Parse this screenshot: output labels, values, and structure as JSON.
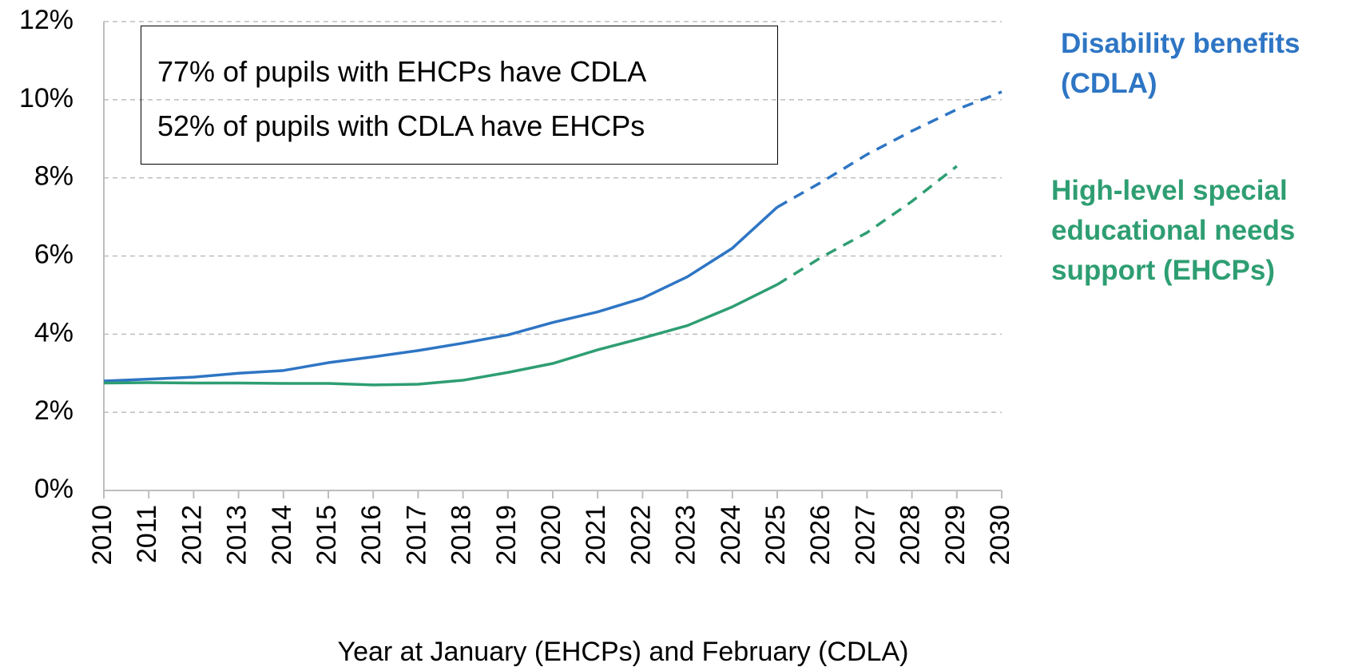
{
  "chart_data": {
    "type": "line",
    "categories": [
      "2010",
      "2011",
      "2012",
      "2013",
      "2014",
      "2015",
      "2016",
      "2017",
      "2018",
      "2019",
      "2020",
      "2021",
      "2022",
      "2023",
      "2024",
      "2025",
      "2026",
      "2027",
      "2028",
      "2029",
      "2030"
    ],
    "series": [
      {
        "name": "Disability benefits (CDLA)",
        "color": "#2e75c4",
        "values": [
          2.8,
          2.85,
          2.9,
          3.0,
          3.07,
          3.27,
          3.42,
          3.58,
          3.77,
          3.98,
          4.3,
          4.57,
          4.92,
          5.47,
          6.2,
          7.25,
          7.9,
          8.6,
          9.2,
          9.75,
          10.2
        ]
      },
      {
        "name": "High-level special educational needs support (EHCPs)",
        "color": "#2e9e72",
        "values": [
          2.75,
          2.76,
          2.75,
          2.75,
          2.74,
          2.74,
          2.7,
          2.72,
          2.82,
          3.02,
          3.25,
          3.6,
          3.9,
          4.22,
          4.7,
          5.27,
          5.98,
          6.6,
          7.4,
          8.3,
          null
        ]
      }
    ],
    "projection_start": "2025",
    "xlabel": "Year at January (EHCPs) and February (CDLA)",
    "ylim": [
      0,
      12
    ],
    "yticks": [
      {
        "value": 0,
        "label": "0%"
      },
      {
        "value": 2,
        "label": "2%"
      },
      {
        "value": 4,
        "label": "4%"
      },
      {
        "value": 6,
        "label": "6%"
      },
      {
        "value": 8,
        "label": "8%"
      },
      {
        "value": 10,
        "label": "10%"
      },
      {
        "value": 12,
        "label": "12%"
      }
    ],
    "grid": true,
    "annotations": [
      "77% of pupils with EHCPs have CDLA",
      "52% of pupils with CDLA have EHCPs"
    ]
  }
}
